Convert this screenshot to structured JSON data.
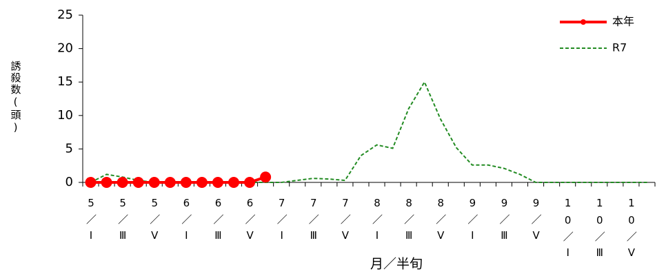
{
  "chart_data": {
    "type": "line",
    "y_label": "誘殺数(頭)",
    "x_label": "月／半旬",
    "categories": [
      "5／Ⅰ",
      null,
      "5／Ⅲ",
      null,
      "5／Ⅴ",
      null,
      "6／Ⅰ",
      null,
      "6／Ⅲ",
      null,
      "6／Ⅴ",
      null,
      "7／Ⅰ",
      null,
      "7／Ⅲ",
      null,
      "7／Ⅴ",
      null,
      "8／Ⅰ",
      null,
      "8／Ⅲ",
      null,
      "8／Ⅴ",
      null,
      "9／Ⅰ",
      null,
      "9／Ⅲ",
      null,
      "9／Ⅴ",
      null,
      "10／Ⅰ",
      null,
      "10／Ⅲ",
      null,
      "10／Ⅴ",
      null
    ],
    "series": [
      {
        "name": "本年",
        "color": "#ff0000",
        "markers": true,
        "values": [
          0,
          0,
          0,
          0,
          0,
          0,
          0,
          0,
          0,
          0,
          0,
          0.8,
          null,
          null,
          null,
          null,
          null,
          null,
          null,
          null,
          null,
          null,
          null,
          null,
          null,
          null,
          null,
          null,
          null,
          null,
          null,
          null,
          null,
          null,
          null,
          null
        ]
      },
      {
        "name": "R7",
        "color": "#228b22",
        "dashed": true,
        "values": [
          0,
          1.2,
          0.8,
          0.3,
          0,
          0,
          0,
          0,
          0,
          0,
          0,
          0,
          0,
          0.3,
          0.6,
          0.5,
          0.3,
          4,
          5.6,
          5.1,
          11,
          15,
          9.5,
          5.2,
          2.6,
          2.6,
          2.1,
          1.2,
          0,
          0,
          0,
          0,
          0,
          0,
          0,
          0
        ]
      }
    ],
    "ylim": [
      0,
      25
    ],
    "yticks": [
      0,
      5,
      10,
      15,
      20,
      25
    ],
    "grid": false,
    "legend": "top-right"
  }
}
